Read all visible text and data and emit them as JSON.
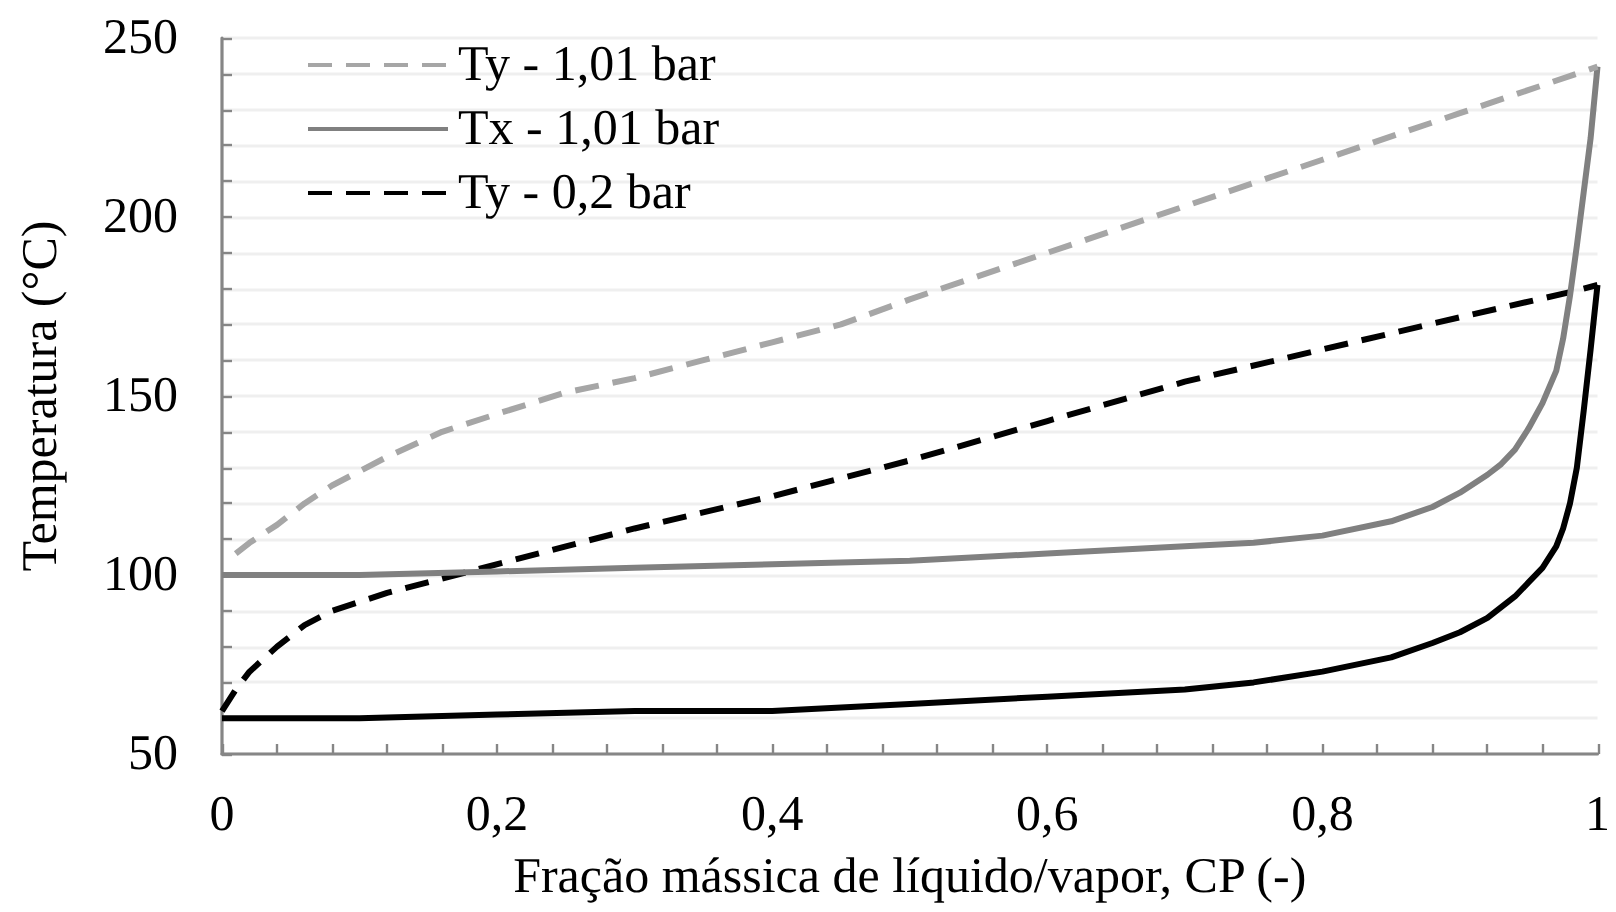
{
  "chart_data": {
    "type": "line",
    "xlabel": "Fração mássica de líquido/vapor, CP (-)",
    "ylabel": "Temperatura (°C)",
    "xlim": [
      0,
      1
    ],
    "ylim": [
      50,
      250
    ],
    "xticks": [
      0,
      {
        "value": 0.04,
        "label": null
      },
      {
        "value": 0.08,
        "label": null
      },
      {
        "value": 0.12,
        "label": null
      },
      {
        "value": 0.16,
        "label": null
      },
      {
        "value": 0.2,
        "label": "0,2"
      },
      {
        "value": 0.24,
        "label": null
      },
      {
        "value": 0.28,
        "label": null
      },
      {
        "value": 0.32,
        "label": null
      },
      {
        "value": 0.36,
        "label": null
      },
      {
        "value": 0.4,
        "label": "0,4"
      },
      {
        "value": 0.44,
        "label": null
      },
      {
        "value": 0.48,
        "label": null
      },
      {
        "value": 0.52,
        "label": null
      },
      {
        "value": 0.56,
        "label": null
      },
      {
        "value": 0.6,
        "label": "0,6"
      },
      {
        "value": 0.64,
        "label": null
      },
      {
        "value": 0.68,
        "label": null
      },
      {
        "value": 0.72,
        "label": null
      },
      {
        "value": 0.76,
        "label": null
      },
      {
        "value": 0.8,
        "label": "0,8"
      },
      {
        "value": 0.84,
        "label": null
      },
      {
        "value": 0.88,
        "label": null
      },
      {
        "value": 0.92,
        "label": null
      },
      {
        "value": 0.96,
        "label": null
      },
      1
    ],
    "yticks": [
      50,
      {
        "value": 60,
        "label": null
      },
      {
        "value": 70,
        "label": null
      },
      {
        "value": 80,
        "label": null
      },
      {
        "value": 90,
        "label": null
      },
      100,
      {
        "value": 110,
        "label": null
      },
      {
        "value": 120,
        "label": null
      },
      {
        "value": 130,
        "label": null
      },
      {
        "value": 140,
        "label": null
      },
      150,
      {
        "value": 160,
        "label": null
      },
      {
        "value": 170,
        "label": null
      },
      {
        "value": 180,
        "label": null
      },
      {
        "value": 190,
        "label": null
      },
      200,
      {
        "value": 210,
        "label": null
      },
      {
        "value": 220,
        "label": null
      },
      {
        "value": 230,
        "label": null
      },
      {
        "value": 240,
        "label": null
      },
      250
    ],
    "grid": "y",
    "legend": "top left",
    "marker": "none",
    "series": [
      {
        "name": "Ty - 1,01 bar",
        "color": "#a6a6a6",
        "line_style": "dashed",
        "x": [
          0.01,
          0.02,
          0.04,
          0.06,
          0.08,
          0.12,
          0.16,
          0.2,
          0.25,
          0.3,
          0.35,
          0.4,
          0.45,
          0.5,
          0.6,
          0.7,
          0.8,
          0.9,
          1
        ],
        "values": [
          106,
          109,
          114,
          120,
          125,
          133,
          140,
          145,
          151,
          155,
          160,
          165,
          170,
          177,
          190,
          203,
          216,
          229,
          242
        ]
      },
      {
        "name": "Tx - 1,01 bar",
        "color": "#808080",
        "line_style": "solid",
        "x": [
          0,
          0.1,
          0.2,
          0.3,
          0.4,
          0.5,
          0.6,
          0.7,
          0.75,
          0.8,
          0.85,
          0.88,
          0.9,
          0.92,
          0.93,
          0.94,
          0.95,
          0.96,
          0.97,
          0.975,
          0.98,
          0.985,
          0.99,
          0.995,
          1
        ],
        "values": [
          100,
          100,
          101,
          102,
          103,
          104,
          106,
          108,
          109,
          111,
          115,
          119,
          123,
          128,
          131,
          135,
          141,
          148,
          157,
          166,
          178,
          192,
          207,
          222,
          242
        ]
      },
      {
        "name": "Ty - 0,2 bar",
        "color": "#000000",
        "line_style": "dashed",
        "x": [
          0,
          0.01,
          0.02,
          0.04,
          0.06,
          0.08,
          0.12,
          0.18,
          0.25,
          0.3,
          0.4,
          0.45,
          0.5,
          0.6,
          0.7,
          0.8,
          0.9,
          0.98,
          1
        ],
        "values": [
          62,
          68,
          73,
          80,
          86,
          90,
          95,
          101,
          108,
          113,
          122,
          127,
          132,
          143,
          154,
          163,
          172,
          179,
          181
        ]
      },
      {
        "color": "#000000",
        "line_style": "solid",
        "x": [
          0,
          0.1,
          0.2,
          0.3,
          0.4,
          0.5,
          0.6,
          0.7,
          0.75,
          0.8,
          0.85,
          0.88,
          0.9,
          0.92,
          0.94,
          0.95,
          0.96,
          0.97,
          0.975,
          0.98,
          0.985,
          0.99,
          0.995,
          1
        ],
        "values": [
          60,
          60,
          61,
          62,
          62,
          64,
          66,
          68,
          70,
          73,
          77,
          81,
          84,
          88,
          94,
          98,
          102,
          108,
          113,
          120,
          130,
          146,
          163,
          181
        ]
      }
    ]
  }
}
